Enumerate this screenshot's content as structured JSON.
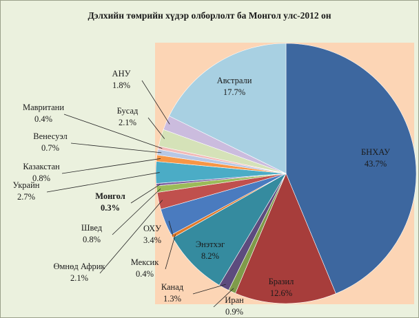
{
  "chart_data": {
    "type": "pie",
    "title": "Дэлхийн төмрийн хүдэр олборлолт ба Монгол улс-2012 он",
    "categories": [
      "БНХАУ",
      "Бразил",
      "Иран",
      "Канад",
      "Энэтхэг",
      "Мексик",
      "ОХУ",
      "Өмнөд Африк",
      "Швед",
      "Монгол",
      "Украйн",
      "Казакстан",
      "Венесуэл",
      "Мавритани",
      "Бусад",
      "АНУ",
      "Австрали"
    ],
    "values": [
      43.7,
      12.6,
      0.9,
      1.3,
      8.2,
      0.4,
      3.4,
      2.1,
      0.8,
      0.3,
      2.7,
      0.8,
      0.7,
      0.4,
      2.1,
      1.8,
      17.7
    ],
    "value_labels": [
      "43.7%",
      "12.6%",
      "0.9%",
      "1.3%",
      "8.2%",
      "0.4%",
      "3.4%",
      "2.1%",
      "0.8%",
      "0.3%",
      "2.7%",
      "0.8%",
      "0.7%",
      "0.4%",
      "2.1%",
      "1.8%",
      "17.7%"
    ],
    "colors": [
      "#3d679f",
      "#a73d3b",
      "#7f9b4a",
      "#5d4b7e",
      "#358b9f",
      "#e07a2b",
      "#4a7bbf",
      "#c0504d",
      "#9bbb59",
      "#8064a2",
      "#4bacc6",
      "#f79646",
      "#b7c7e5",
      "#f2b9b7",
      "#d5e2b8",
      "#cbbcde",
      "#a8d0e2"
    ]
  }
}
